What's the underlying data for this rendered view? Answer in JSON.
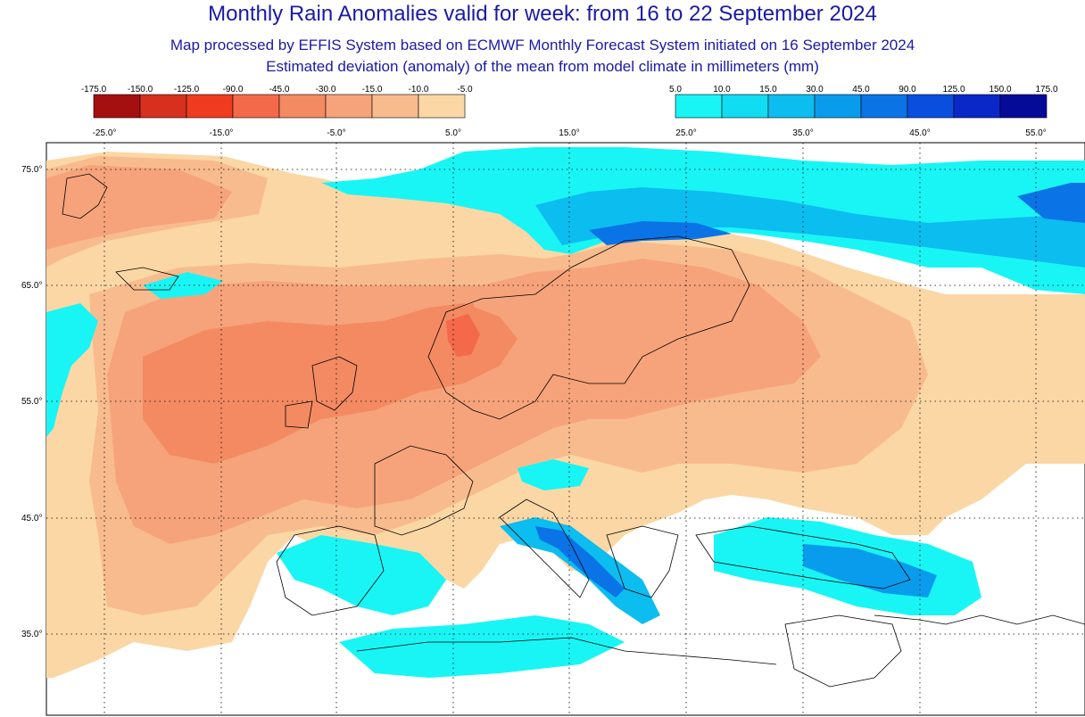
{
  "title": "Monthly Rain Anomalies valid for week: from 16 to 22 September 2024",
  "subtitle": "Map processed by EFFIS System based on ECMWF Monthly Forecast System initiated on 16 September 2024",
  "subtitle2": "Estimated deviation (anomaly) of the mean from model climate in millimeters (mm)",
  "legend_negative": {
    "labels": [
      "-175.0",
      "-150.0",
      "-125.0",
      "-90.0",
      "-45.0",
      "-30.0",
      "-15.0",
      "-10.0",
      "-5.0"
    ],
    "colors": [
      "#a50f0f",
      "#d7301f",
      "#f03b20",
      "#f4694a",
      "#f38a62",
      "#f6a37b",
      "#f8bb8e",
      "#fbd7a5"
    ]
  },
  "legend_positive": {
    "labels": [
      "5.0",
      "10.0",
      "15.0",
      "30.0",
      "45.0",
      "90.0",
      "125.0",
      "150.0",
      "175.0"
    ],
    "colors": [
      "#19f5f5",
      "#10dcf2",
      "#0cbdf0",
      "#0a9cec",
      "#0a74e6",
      "#0a4ee0",
      "#0a28c8",
      "#060a98"
    ]
  },
  "map": {
    "lon_labels": [
      "-25.0°",
      "-15.0°",
      "-5.0°",
      "5.0°",
      "15.0°",
      "25.0°",
      "35.0°",
      "45.0°",
      "55.0°"
    ],
    "lat_labels": [
      "75.0°",
      "65.0°",
      "55.0°",
      "45.0°",
      "35.0°"
    ],
    "colors": {
      "background": "#ffffff",
      "coast": "#000000",
      "grid": "#000000"
    }
  }
}
